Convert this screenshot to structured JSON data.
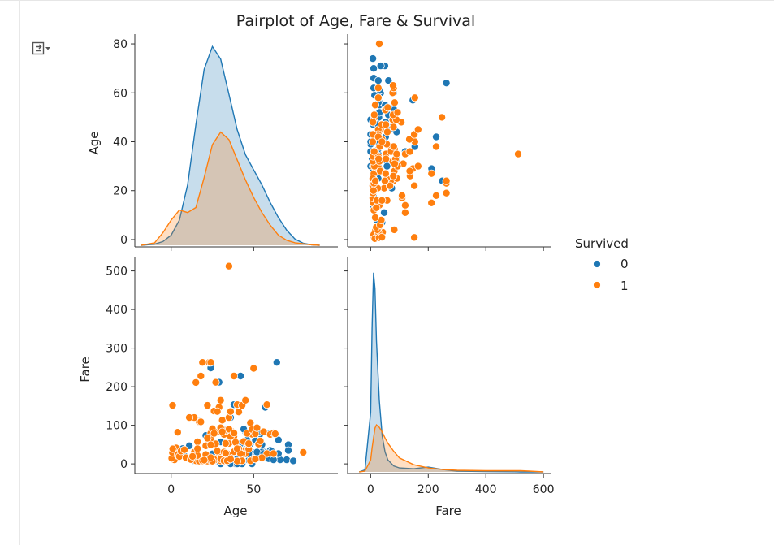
{
  "output_toggle": {
    "icon": "output-collapse-icon"
  },
  "chart_data": {
    "type": "scatter",
    "title": "Pairplot of Age, Fare & Survival",
    "variables": [
      "Age",
      "Fare"
    ],
    "hue": "Survived",
    "legend": {
      "title": "Survived",
      "placement": "right",
      "entries": [
        "0",
        "1"
      ]
    },
    "colors": {
      "0": "#1f77b4",
      "1": "#ff7f0e"
    },
    "axes": {
      "age": {
        "label": "Age",
        "lim": [
          -22,
          101
        ],
        "ticks": [
          0,
          50
        ],
        "yticks": [
          0,
          20,
          40,
          60,
          80
        ],
        "ylim": [
          -3,
          84
        ]
      },
      "fare": {
        "label": "Fare",
        "lim": [
          -80,
          625
        ],
        "ticks": [
          0,
          200,
          400,
          600
        ],
        "yticks": [
          0,
          100,
          200,
          300,
          400,
          500
        ],
        "ylim": [
          -25,
          537
        ]
      }
    },
    "kde": {
      "age": {
        "x": [
          -18,
          -10,
          -5,
          0,
          5,
          10,
          15,
          20,
          25,
          30,
          35,
          40,
          45,
          50,
          55,
          60,
          65,
          70,
          75,
          80,
          85,
          90
        ],
        "series": [
          {
            "name": "0",
            "density": [
              0,
              0.5,
              1.5,
              4,
              10,
              24,
              48,
              70,
              79,
              74,
              60,
              46,
              36,
              30,
              24,
              17,
              11,
              6,
              2.5,
              0.8,
              0.2,
              0
            ]
          },
          {
            "name": "1",
            "density": [
              0,
              1,
              5,
              10,
              14,
              13,
              15,
              27,
              40,
              45,
              42,
              34,
              26,
              19,
              13,
              8,
              4,
              2,
              1,
              0.6,
              0.2,
              0
            ]
          }
        ]
      },
      "fare": {
        "x": [
          -40,
          -20,
          0,
          5,
          10,
          15,
          20,
          30,
          40,
          50,
          60,
          80,
          100,
          150,
          200,
          250,
          300,
          400,
          500,
          520,
          550,
          600
        ],
        "series": [
          {
            "name": "0",
            "density": [
              0,
              5,
              150,
              360,
              500,
              460,
              330,
              180,
              90,
              50,
              30,
              15,
              10,
              8,
              12,
              6,
              2,
              1,
              0.5,
              0,
              0,
              0
            ]
          },
          {
            "name": "1",
            "density": [
              0,
              2,
              30,
              60,
              85,
              110,
              118,
              112,
              100,
              85,
              72,
              52,
              35,
              18,
              10,
              6,
              4,
              3,
              3,
              3,
              2,
              0
            ]
          }
        ]
      }
    },
    "points": {
      "s0": [
        [
          22,
          7.25
        ],
        [
          38,
          71.3
        ],
        [
          26,
          7.9
        ],
        [
          35,
          53.1
        ],
        [
          35,
          8.05
        ],
        [
          54,
          51.9
        ],
        [
          2,
          21.1
        ],
        [
          27,
          11.1
        ],
        [
          14,
          30.1
        ],
        [
          4,
          16.7
        ],
        [
          58,
          26.6
        ],
        [
          20,
          8.05
        ],
        [
          39,
          31.3
        ],
        [
          14,
          7.9
        ],
        [
          55,
          16
        ],
        [
          2,
          29.1
        ],
        [
          31,
          18
        ],
        [
          35,
          26
        ],
        [
          34,
          13
        ],
        [
          15,
          8.03
        ],
        [
          28,
          35.5
        ],
        [
          8,
          21.1
        ],
        [
          38,
          31.4
        ],
        [
          19,
          263
        ],
        [
          40,
          27.7
        ],
        [
          66,
          10.5
        ],
        [
          28,
          82.2
        ],
        [
          42,
          52
        ],
        [
          21,
          8.05
        ],
        [
          18,
          11.1
        ],
        [
          40,
          9.5
        ],
        [
          27,
          21
        ],
        [
          3,
          41.6
        ],
        [
          19,
          7.9
        ],
        [
          18,
          8.05
        ],
        [
          7,
          39.7
        ],
        [
          21,
          7.8
        ],
        [
          49,
          76.7
        ],
        [
          29,
          26
        ],
        [
          65,
          61.9
        ],
        [
          21,
          46.9
        ],
        [
          28.5,
          7.2
        ],
        [
          5,
          27.9
        ],
        [
          11,
          46.9
        ],
        [
          22,
          7.2
        ],
        [
          45,
          34.4
        ],
        [
          4,
          81.9
        ],
        [
          29,
          30
        ],
        [
          19,
          7.9
        ],
        [
          17,
          7.2
        ],
        [
          26,
          8.05
        ],
        [
          32,
          15.5
        ],
        [
          16,
          21.7
        ],
        [
          21,
          24.2
        ],
        [
          26,
          8.05
        ],
        [
          25,
          26
        ],
        [
          33,
          8.7
        ],
        [
          30,
          8.05
        ],
        [
          22,
          7.55
        ],
        [
          29,
          9.5
        ],
        [
          24,
          7.9
        ],
        [
          47,
          9
        ],
        [
          45,
          36.8
        ],
        [
          37,
          26.3
        ],
        [
          71,
          49.5
        ],
        [
          31,
          20.5
        ],
        [
          24,
          79.2
        ],
        [
          70,
          10.5
        ],
        [
          18,
          9.35
        ],
        [
          50,
          13
        ],
        [
          30,
          7.9
        ],
        [
          45,
          26.6
        ],
        [
          62,
          26.6
        ],
        [
          26,
          6.25
        ],
        [
          61,
          33.5
        ],
        [
          36,
          15.2
        ],
        [
          56,
          30.7
        ],
        [
          50,
          28.7
        ],
        [
          40,
          13
        ],
        [
          74,
          7.8
        ],
        [
          60,
          35
        ],
        [
          55,
          30.5
        ],
        [
          28,
          33
        ],
        [
          43,
          26.3
        ],
        [
          64,
          263
        ],
        [
          59,
          13.5
        ],
        [
          33,
          7.9
        ],
        [
          23,
          11.5
        ],
        [
          48,
          7.85
        ],
        [
          36,
          10.5
        ],
        [
          44,
          26
        ],
        [
          41,
          7.12
        ],
        [
          46,
          61.2
        ],
        [
          25,
          7.05
        ],
        [
          58,
          26.5
        ],
        [
          19,
          8.05
        ],
        [
          30,
          13
        ],
        [
          62,
          10.5
        ],
        [
          41,
          39.7
        ],
        [
          26,
          7.8
        ],
        [
          43,
          8.05
        ],
        [
          51,
          12.5
        ],
        [
          32,
          8.05
        ],
        [
          26,
          13
        ],
        [
          40,
          7.2
        ],
        [
          47,
          38.5
        ],
        [
          34,
          8.05
        ],
        [
          24,
          16.1
        ],
        [
          28,
          7.9
        ],
        [
          38,
          153.5
        ],
        [
          30,
          0
        ],
        [
          39,
          0
        ],
        [
          36,
          0
        ],
        [
          49,
          0
        ],
        [
          43,
          0
        ],
        [
          40,
          0
        ],
        [
          52,
          30.5
        ],
        [
          65,
          26.55
        ],
        [
          24,
          248.7
        ],
        [
          33,
          5
        ],
        [
          71,
          34.7
        ],
        [
          54,
          77.3
        ],
        [
          61,
          32.3
        ],
        [
          63,
          77.9
        ],
        [
          17,
          110.9
        ],
        [
          30,
          27
        ],
        [
          45,
          83.5
        ],
        [
          47,
          52
        ],
        [
          42,
          227.5
        ],
        [
          29,
          211.5
        ],
        [
          48,
          52
        ],
        [
          36,
          120
        ],
        [
          32,
          76.7
        ],
        [
          51,
          61.4
        ],
        [
          23,
          263
        ],
        [
          33,
          90
        ],
        [
          60,
          79.2
        ],
        [
          47,
          25.6
        ],
        [
          55,
          50
        ],
        [
          28,
          7.74
        ],
        [
          56,
          26.6
        ],
        [
          57,
          146.5
        ],
        [
          36,
          75.2
        ],
        [
          21,
          73.5
        ],
        [
          46,
          79.2
        ],
        [
          22,
          151.55
        ],
        [
          32,
          56.5
        ],
        [
          30,
          56.9
        ],
        [
          44,
          90
        ],
        [
          53,
          81.9
        ]
      ],
      "s1": [
        [
          38,
          71.3
        ],
        [
          26,
          7.9
        ],
        [
          35,
          53.1
        ],
        [
          27,
          11.1
        ],
        [
          14,
          30.1
        ],
        [
          4,
          16.7
        ],
        [
          58,
          26.6
        ],
        [
          55,
          16
        ],
        [
          34,
          13
        ],
        [
          15,
          8.03
        ],
        [
          28,
          35.5
        ],
        [
          38,
          31.4
        ],
        [
          3,
          41.6
        ],
        [
          19,
          7.9
        ],
        [
          49,
          76.7
        ],
        [
          29,
          26
        ],
        [
          21,
          46.9
        ],
        [
          5,
          27.9
        ],
        [
          22,
          7.2
        ],
        [
          45,
          34.4
        ],
        [
          4,
          81.9
        ],
        [
          29,
          30
        ],
        [
          17,
          7.2
        ],
        [
          32,
          15.5
        ],
        [
          16,
          21.7
        ],
        [
          21,
          24.2
        ],
        [
          35,
          512.3
        ],
        [
          24,
          79.2
        ],
        [
          50,
          13
        ],
        [
          30,
          7.9
        ],
        [
          45,
          26.6
        ],
        [
          62,
          26.6
        ],
        [
          36,
          15.2
        ],
        [
          28,
          33
        ],
        [
          43,
          26.3
        ],
        [
          23,
          11.5
        ],
        [
          48,
          7.85
        ],
        [
          25,
          7.05
        ],
        [
          19,
          8.05
        ],
        [
          30,
          13
        ],
        [
          41,
          39.7
        ],
        [
          43,
          8.05
        ],
        [
          51,
          12.5
        ],
        [
          32,
          8.05
        ],
        [
          40,
          7.2
        ],
        [
          47,
          38.5
        ],
        [
          34,
          8.05
        ],
        [
          24,
          16.1
        ],
        [
          0.9,
          151.55
        ],
        [
          1,
          11.1
        ],
        [
          2,
          10.5
        ],
        [
          3,
          26
        ],
        [
          0.4,
          14.5
        ],
        [
          0.8,
          29
        ],
        [
          1,
          39
        ],
        [
          4,
          23
        ],
        [
          5,
          19.3
        ],
        [
          6,
          33
        ],
        [
          8,
          36.75
        ],
        [
          9,
          15.9
        ],
        [
          12,
          11.2
        ],
        [
          13,
          19.5
        ],
        [
          14,
          120
        ],
        [
          15,
          211
        ],
        [
          16,
          57
        ],
        [
          17,
          108.9
        ],
        [
          18,
          227.5
        ],
        [
          19,
          263
        ],
        [
          20,
          9.8
        ],
        [
          22,
          151.6
        ],
        [
          23,
          263
        ],
        [
          24,
          263
        ],
        [
          24,
          69.3
        ],
        [
          25,
          55.4
        ],
        [
          26,
          136.8
        ],
        [
          27,
          211.3
        ],
        [
          28,
          82.2
        ],
        [
          29,
          146.5
        ],
        [
          30,
          164.9
        ],
        [
          31,
          113.3
        ],
        [
          32,
          76.3
        ],
        [
          33,
          86.5
        ],
        [
          34,
          26.6
        ],
        [
          35,
          120
        ],
        [
          36,
          135.6
        ],
        [
          37,
          83.2
        ],
        [
          38,
          227.5
        ],
        [
          39,
          55.9
        ],
        [
          40,
          153.5
        ],
        [
          41,
          134.5
        ],
        [
          42,
          26.55
        ],
        [
          43,
          151.55
        ],
        [
          44,
          57.9
        ],
        [
          45,
          164.9
        ],
        [
          46,
          79.2
        ],
        [
          47,
          52.5
        ],
        [
          48,
          106.4
        ],
        [
          49,
          89.1
        ],
        [
          50,
          247.5
        ],
        [
          51,
          77.9
        ],
        [
          52,
          93.5
        ],
        [
          53,
          51.5
        ],
        [
          54,
          59.4
        ],
        [
          56,
          83.2
        ],
        [
          58,
          153.5
        ],
        [
          60,
          76.3
        ],
        [
          62,
          80
        ],
        [
          63,
          77.9
        ],
        [
          80,
          30
        ],
        [
          30,
          93.5
        ],
        [
          22,
          66.6
        ],
        [
          36,
          71
        ],
        [
          27,
          52
        ],
        [
          33,
          53.1
        ],
        [
          18,
          108.9
        ],
        [
          28,
          135.6
        ],
        [
          35,
          90
        ],
        [
          40,
          39.4
        ],
        [
          24,
          49.5
        ],
        [
          38,
          80
        ],
        [
          16,
          39.4
        ],
        [
          25,
          91.1
        ],
        [
          31,
          83.2
        ],
        [
          32,
          30.5
        ],
        [
          14,
          120
        ],
        [
          11,
          120
        ],
        [
          33,
          27.7
        ],
        [
          36,
          12.3
        ],
        [
          26,
          78.9
        ]
      ]
    }
  }
}
